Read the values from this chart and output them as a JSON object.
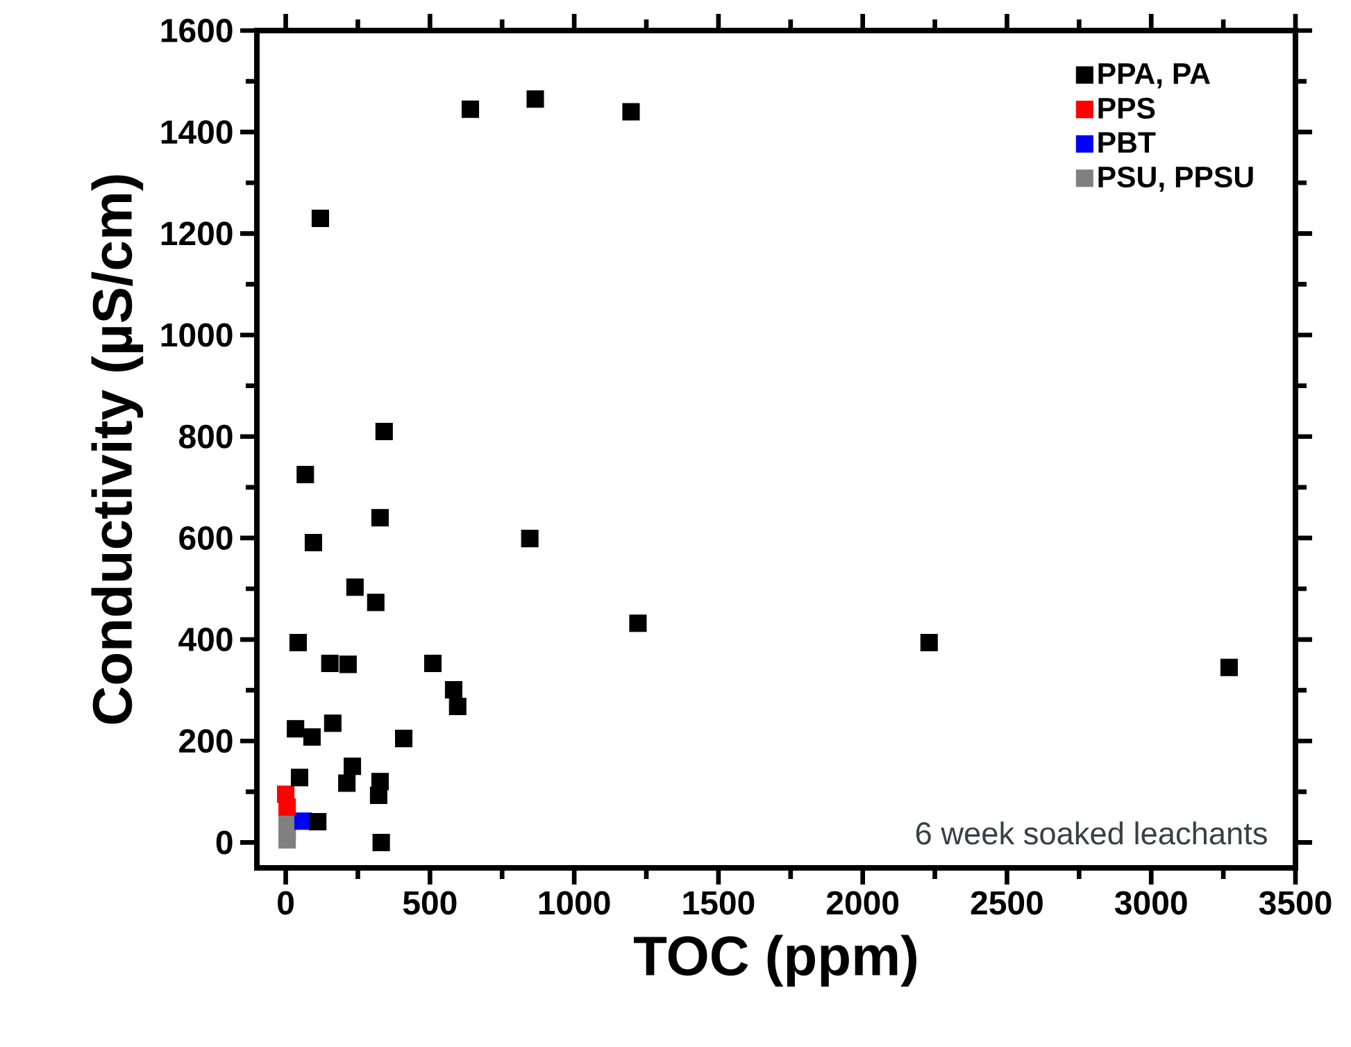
{
  "chart_data": {
    "type": "scatter",
    "xlabel": "TOC (ppm)",
    "ylabel": "Conductivity (µS/cm)",
    "xlim": [
      -100,
      3500
    ],
    "ylim": [
      -50,
      1600
    ],
    "xticks": [
      0,
      500,
      1000,
      1500,
      2000,
      2500,
      3000,
      3500
    ],
    "yticks": [
      0,
      200,
      400,
      600,
      800,
      1000,
      1200,
      1400,
      1600
    ],
    "grid": false,
    "legend": "top right",
    "marker": "square",
    "annotations": [
      "6 week soaked leachants"
    ],
    "series": [
      {
        "name": "PPA, PA",
        "color": "#000000",
        "x": [
          120,
          640,
          865,
          1197,
          341,
          68,
          327,
          96,
          846,
          240,
          312,
          1221,
          43,
          153,
          216,
          510,
          582,
          596,
          34,
          91,
          163,
          409,
          231,
          48,
          212,
          327,
          322,
          111,
          331,
          2230,
          3270
        ],
        "values": [
          1230,
          1445,
          1465,
          1440,
          810,
          725,
          640,
          591,
          599,
          503,
          473,
          432,
          394,
          353,
          351,
          353,
          301,
          268,
          224,
          208,
          235,
          205,
          150,
          128,
          117,
          120,
          93,
          41,
          0,
          394,
          345
        ]
      },
      {
        "name": "PPS",
        "color": "#ff0000",
        "x": [
          0,
          5
        ],
        "values": [
          95,
          70
        ]
      },
      {
        "name": "PBT",
        "color": "#0000ff",
        "x": [
          60
        ],
        "values": [
          42
        ]
      },
      {
        "name": "PSU, PPSU",
        "color": "#808080",
        "x": [
          5,
          5,
          5
        ],
        "values": [
          50,
          25,
          5
        ]
      }
    ]
  }
}
